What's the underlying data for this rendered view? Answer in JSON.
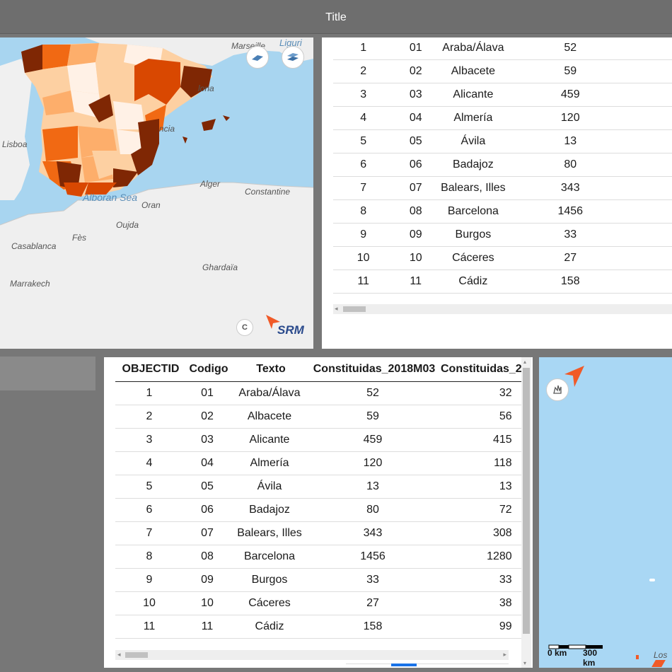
{
  "header": {
    "title": "Title"
  },
  "map1": {
    "labels": {
      "marseille": "Marseille",
      "liguria": "Liguri",
      "barcelona": "lona",
      "valencia": "ncia",
      "lisboa": "Lisboa",
      "alger": "Alger",
      "constantine": "Constantine",
      "oran": "Oran",
      "oujda": "Oujda",
      "fes": "Fès",
      "casablanca": "Casablanca",
      "ghardaia": "Ghardaïa",
      "marrakech": "Marrakech",
      "alboran": "Alboran Sea"
    },
    "logo_text": "SRM",
    "copyright_symbol": "C"
  },
  "table1": {
    "rows": [
      [
        "1",
        "01",
        "Araba/Álava",
        "52"
      ],
      [
        "2",
        "02",
        "Albacete",
        "59"
      ],
      [
        "3",
        "03",
        "Alicante",
        "459"
      ],
      [
        "4",
        "04",
        "Almería",
        "120"
      ],
      [
        "5",
        "05",
        "Ávila",
        "13"
      ],
      [
        "6",
        "06",
        "Badajoz",
        "80"
      ],
      [
        "7",
        "07",
        "Balears, Illes",
        "343"
      ],
      [
        "8",
        "08",
        "Barcelona",
        "1456"
      ],
      [
        "9",
        "09",
        "Burgos",
        "33"
      ],
      [
        "10",
        "10",
        "Cáceres",
        "27"
      ],
      [
        "11",
        "11",
        "Cádiz",
        "158"
      ]
    ]
  },
  "table2": {
    "headers": [
      "OBJECTID",
      "Codigo",
      "Texto",
      "Constituidas_2018M03",
      "Constituidas_2"
    ],
    "rows": [
      [
        "1",
        "01",
        "Araba/Álava",
        "52",
        "32"
      ],
      [
        "2",
        "02",
        "Albacete",
        "59",
        "56"
      ],
      [
        "3",
        "03",
        "Alicante",
        "459",
        "415"
      ],
      [
        "4",
        "04",
        "Almería",
        "120",
        "118"
      ],
      [
        "5",
        "05",
        "Ávila",
        "13",
        "13"
      ],
      [
        "6",
        "06",
        "Badajoz",
        "80",
        "72"
      ],
      [
        "7",
        "07",
        "Balears, Illes",
        "343",
        "308"
      ],
      [
        "8",
        "08",
        "Barcelona",
        "1456",
        "1280"
      ],
      [
        "9",
        "09",
        "Burgos",
        "33",
        "33"
      ],
      [
        "10",
        "10",
        "Cáceres",
        "27",
        "38"
      ],
      [
        "11",
        "11",
        "Cádiz",
        "158",
        "99"
      ]
    ]
  },
  "map2": {
    "scale_0": "0 km",
    "scale_300": "300 km",
    "corner_label": "Los"
  },
  "colors": {
    "sea": "#a8d5f0",
    "land": "#efefef",
    "choropleth": [
      "#fff1e6",
      "#fdd0a2",
      "#fdae6b",
      "#f16913",
      "#d94801",
      "#7f2704"
    ],
    "accent": "#f05a28"
  }
}
